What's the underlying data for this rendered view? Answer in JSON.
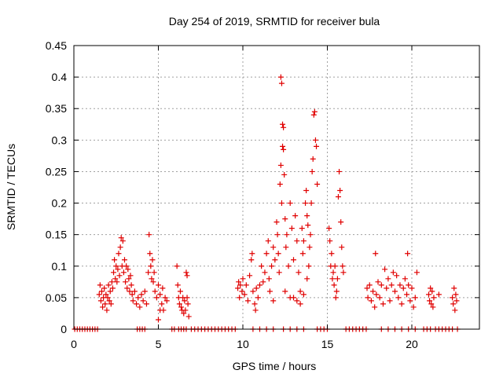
{
  "chart_data": {
    "type": "scatter",
    "title": "Day 254 of 2019, SRMTID for receiver bula",
    "xlabel": "GPS time / hours",
    "ylabel": "SRMTID / TECUs",
    "xlim": [
      0,
      24
    ],
    "ylim": [
      0,
      0.45
    ],
    "x_ticks": [
      0,
      5,
      10,
      15,
      20
    ],
    "x_tick_labels": [
      "0",
      "5",
      "10",
      "15",
      "20"
    ],
    "y_ticks": [
      0,
      0.05,
      0.1,
      0.15,
      0.2,
      0.25,
      0.3,
      0.35,
      0.4,
      0.45
    ],
    "y_tick_labels": [
      "0",
      "0.05",
      "0.1",
      "0.15",
      "0.2",
      "0.25",
      "0.3",
      "0.35",
      "0.4",
      "0.45"
    ],
    "grid": true,
    "marker": "+",
    "colors": {
      "series": "#e00000",
      "grid": "#a0a0a0",
      "axis": "#000000"
    },
    "series": [
      {
        "name": "SRMTID",
        "points": [
          [
            0.05,
            0
          ],
          [
            0.2,
            0
          ],
          [
            0.35,
            0
          ],
          [
            0.5,
            0
          ],
          [
            0.65,
            0
          ],
          [
            0.8,
            0
          ],
          [
            0.95,
            0
          ],
          [
            1.1,
            0
          ],
          [
            1.25,
            0
          ],
          [
            1.4,
            0
          ],
          [
            1.5,
            0.055
          ],
          [
            1.55,
            0.07
          ],
          [
            1.6,
            0.045
          ],
          [
            1.65,
            0.06
          ],
          [
            1.7,
            0.035
          ],
          [
            1.75,
            0.05
          ],
          [
            1.8,
            0.065
          ],
          [
            1.85,
            0.04
          ],
          [
            1.9,
            0.055
          ],
          [
            1.95,
            0.03
          ],
          [
            2.0,
            0.05
          ],
          [
            2.05,
            0.07
          ],
          [
            2.1,
            0.045
          ],
          [
            2.15,
            0.06
          ],
          [
            2.2,
            0.04
          ],
          [
            2.25,
            0.075
          ],
          [
            2.3,
            0.065
          ],
          [
            2.35,
            0.09
          ],
          [
            2.4,
            0.11
          ],
          [
            2.45,
            0.08
          ],
          [
            2.5,
            0.1
          ],
          [
            2.55,
            0.075
          ],
          [
            2.6,
            0.095
          ],
          [
            2.65,
            0.12
          ],
          [
            2.7,
            0.085
          ],
          [
            2.75,
            0.13
          ],
          [
            2.8,
            0.145
          ],
          [
            2.85,
            0.1
          ],
          [
            2.9,
            0.14
          ],
          [
            2.95,
            0.09
          ],
          [
            3.0,
            0.11
          ],
          [
            3.05,
            0.075
          ],
          [
            3.1,
            0.1
          ],
          [
            3.15,
            0.065
          ],
          [
            3.2,
            0.095
          ],
          [
            3.25,
            0.08
          ],
          [
            3.3,
            0.06
          ],
          [
            3.35,
            0.085
          ],
          [
            3.4,
            0.07
          ],
          [
            3.45,
            0.055
          ],
          [
            3.5,
            0.045
          ],
          [
            3.6,
            0.06
          ],
          [
            3.7,
            0.04
          ],
          [
            3.8,
            0.05
          ],
          [
            3.9,
            0.035
          ],
          [
            4.0,
            0.055
          ],
          [
            4.1,
            0.045
          ],
          [
            4.2,
            0.06
          ],
          [
            4.3,
            0.04
          ],
          [
            4.4,
            0.09
          ],
          [
            4.45,
            0.15
          ],
          [
            4.5,
            0.12
          ],
          [
            4.55,
            0.1
          ],
          [
            4.6,
            0.08
          ],
          [
            4.65,
            0.11
          ],
          [
            4.7,
            0.075
          ],
          [
            4.75,
            0.09
          ],
          [
            4.8,
            0.06
          ],
          [
            4.9,
            0.05
          ],
          [
            5.0,
            0.07
          ],
          [
            5.1,
            0.055
          ],
          [
            5.2,
            0.04
          ],
          [
            5.25,
            0.065
          ],
          [
            5.3,
            0.03
          ],
          [
            5.4,
            0.05
          ],
          [
            5.5,
            0.045
          ],
          [
            5.0,
            0.015
          ],
          [
            5.1,
            0.03
          ],
          [
            3.75,
            0
          ],
          [
            3.9,
            0
          ],
          [
            4.05,
            0
          ],
          [
            4.2,
            0
          ],
          [
            5.8,
            0
          ],
          [
            5.95,
            0
          ],
          [
            6.1,
            0.1
          ],
          [
            6.15,
            0.07
          ],
          [
            6.2,
            0.05
          ],
          [
            6.25,
            0.04
          ],
          [
            6.3,
            0.06
          ],
          [
            6.35,
            0.035
          ],
          [
            6.4,
            0.03
          ],
          [
            6.45,
            0.05
          ],
          [
            6.5,
            0.025
          ],
          [
            6.55,
            0.045
          ],
          [
            6.6,
            0.03
          ],
          [
            6.7,
            0.05
          ],
          [
            6.75,
            0.04
          ],
          [
            6.8,
            0.02
          ],
          [
            6.65,
            0.09
          ],
          [
            6.7,
            0.085
          ],
          [
            6.2,
            0
          ],
          [
            6.35,
            0
          ],
          [
            6.5,
            0
          ],
          [
            6.65,
            0
          ],
          [
            6.95,
            0
          ],
          [
            7.15,
            0
          ],
          [
            7.35,
            0
          ],
          [
            7.55,
            0
          ],
          [
            7.75,
            0
          ],
          [
            7.95,
            0
          ],
          [
            8.15,
            0
          ],
          [
            8.35,
            0
          ],
          [
            8.55,
            0
          ],
          [
            8.75,
            0
          ],
          [
            8.95,
            0
          ],
          [
            9.15,
            0
          ],
          [
            9.35,
            0
          ],
          [
            9.55,
            0
          ],
          [
            9.7,
            0.065
          ],
          [
            9.75,
            0.075
          ],
          [
            9.8,
            0.05
          ],
          [
            9.85,
            0.07
          ],
          [
            9.95,
            0.06
          ],
          [
            10.0,
            0.08
          ],
          [
            10.1,
            0.055
          ],
          [
            10.2,
            0.07
          ],
          [
            10.3,
            0.045
          ],
          [
            10.4,
            0.085
          ],
          [
            10.5,
            0.11
          ],
          [
            10.55,
            0.12
          ],
          [
            10.6,
            0.06
          ],
          [
            10.7,
            0.04
          ],
          [
            10.75,
            0.03
          ],
          [
            10.8,
            0.065
          ],
          [
            10.9,
            0.05
          ],
          [
            11.0,
            0.07
          ],
          [
            11.1,
            0.1
          ],
          [
            11.2,
            0.075
          ],
          [
            11.3,
            0.09
          ],
          [
            11.4,
            0.12
          ],
          [
            11.5,
            0.14
          ],
          [
            11.55,
            0.08
          ],
          [
            11.6,
            0.06
          ],
          [
            11.7,
            0.1
          ],
          [
            11.8,
            0.13
          ],
          [
            11.9,
            0.11
          ],
          [
            12.0,
            0.17
          ],
          [
            12.05,
            0.15
          ],
          [
            12.1,
            0.12
          ],
          [
            12.15,
            0.09
          ],
          [
            12.2,
            0.23
          ],
          [
            12.25,
            0.26
          ],
          [
            12.3,
            0.2
          ],
          [
            12.35,
            0.29
          ],
          [
            12.4,
            0.285
          ],
          [
            12.25,
            0.4
          ],
          [
            12.3,
            0.39
          ],
          [
            12.35,
            0.325
          ],
          [
            12.4,
            0.32
          ],
          [
            12.45,
            0.245
          ],
          [
            12.5,
            0.175
          ],
          [
            12.55,
            0.13
          ],
          [
            12.6,
            0.15
          ],
          [
            12.7,
            0.1
          ],
          [
            12.8,
            0.2
          ],
          [
            12.9,
            0.16
          ],
          [
            13.0,
            0.11
          ],
          [
            13.1,
            0.18
          ],
          [
            13.2,
            0.14
          ],
          [
            13.3,
            0.09
          ],
          [
            13.4,
            0.06
          ],
          [
            13.5,
            0.16
          ],
          [
            13.55,
            0.12
          ],
          [
            13.6,
            0.14
          ],
          [
            13.7,
            0.2
          ],
          [
            13.75,
            0.22
          ],
          [
            13.8,
            0.18
          ],
          [
            13.85,
            0.165
          ],
          [
            13.9,
            0.1
          ],
          [
            13.95,
            0.13
          ],
          [
            14.0,
            0.15
          ],
          [
            14.05,
            0.2
          ],
          [
            14.1,
            0.25
          ],
          [
            14.15,
            0.27
          ],
          [
            14.2,
            0.34
          ],
          [
            14.25,
            0.345
          ],
          [
            14.3,
            0.3
          ],
          [
            14.35,
            0.29
          ],
          [
            14.4,
            0.23
          ],
          [
            13.0,
            0.05
          ],
          [
            13.2,
            0.045
          ],
          [
            13.4,
            0.04
          ],
          [
            13.6,
            0.055
          ],
          [
            13.8,
            0.08
          ],
          [
            12.5,
            0.06
          ],
          [
            12.8,
            0.05
          ],
          [
            11.8,
            0.045
          ],
          [
            10.6,
            0
          ],
          [
            11.0,
            0
          ],
          [
            11.4,
            0
          ],
          [
            11.8,
            0
          ],
          [
            12.4,
            0
          ],
          [
            12.8,
            0
          ],
          [
            13.2,
            0
          ],
          [
            13.6,
            0
          ],
          [
            14.4,
            0
          ],
          [
            14.6,
            0
          ],
          [
            14.8,
            0
          ],
          [
            15.0,
            0
          ],
          [
            15.1,
            0.16
          ],
          [
            15.15,
            0.14
          ],
          [
            15.2,
            0.1
          ],
          [
            15.25,
            0.12
          ],
          [
            15.3,
            0.08
          ],
          [
            15.35,
            0.09
          ],
          [
            15.4,
            0.07
          ],
          [
            15.45,
            0.1
          ],
          [
            15.5,
            0.05
          ],
          [
            15.55,
            0.06
          ],
          [
            15.6,
            0.08
          ],
          [
            15.65,
            0.21
          ],
          [
            15.7,
            0.25
          ],
          [
            15.75,
            0.22
          ],
          [
            15.8,
            0.17
          ],
          [
            15.85,
            0.13
          ],
          [
            15.9,
            0.1
          ],
          [
            15.95,
            0.09
          ],
          [
            16.1,
            0
          ],
          [
            16.3,
            0
          ],
          [
            16.5,
            0
          ],
          [
            16.7,
            0
          ],
          [
            16.9,
            0
          ],
          [
            17.1,
            0
          ],
          [
            17.3,
            0
          ],
          [
            17.35,
            0.065
          ],
          [
            17.4,
            0.05
          ],
          [
            17.5,
            0.07
          ],
          [
            17.6,
            0.045
          ],
          [
            17.7,
            0.06
          ],
          [
            17.8,
            0.035
          ],
          [
            17.85,
            0.12
          ],
          [
            17.9,
            0.055
          ],
          [
            18.0,
            0.075
          ],
          [
            18.1,
            0.05
          ],
          [
            18.2,
            0.07
          ],
          [
            18.3,
            0.04
          ],
          [
            18.4,
            0.095
          ],
          [
            18.5,
            0.065
          ],
          [
            18.6,
            0.08
          ],
          [
            18.7,
            0.045
          ],
          [
            18.8,
            0.07
          ],
          [
            18.9,
            0.09
          ],
          [
            19.0,
            0.06
          ],
          [
            19.1,
            0.085
          ],
          [
            19.2,
            0.05
          ],
          [
            19.3,
            0.07
          ],
          [
            19.4,
            0.04
          ],
          [
            19.5,
            0.065
          ],
          [
            19.6,
            0.08
          ],
          [
            19.7,
            0.055
          ],
          [
            19.75,
            0.12
          ],
          [
            19.8,
            0.07
          ],
          [
            19.9,
            0.045
          ],
          [
            20.0,
            0.065
          ],
          [
            20.1,
            0.035
          ],
          [
            20.2,
            0.05
          ],
          [
            20.3,
            0.09
          ],
          [
            18.2,
            0
          ],
          [
            18.6,
            0
          ],
          [
            19.0,
            0
          ],
          [
            19.4,
            0
          ],
          [
            19.8,
            0
          ],
          [
            20.2,
            0
          ],
          [
            20.7,
            0
          ],
          [
            20.9,
            0
          ],
          [
            21.1,
            0
          ],
          [
            21.0,
            0.055
          ],
          [
            21.05,
            0.045
          ],
          [
            21.1,
            0.065
          ],
          [
            21.15,
            0.04
          ],
          [
            21.2,
            0.06
          ],
          [
            21.25,
            0.035
          ],
          [
            21.3,
            0.05
          ],
          [
            21.4,
            0
          ],
          [
            21.6,
            0
          ],
          [
            21.8,
            0
          ],
          [
            22.0,
            0
          ],
          [
            22.2,
            0
          ],
          [
            22.4,
            0
          ],
          [
            21.6,
            0.055
          ],
          [
            22.4,
            0.05
          ],
          [
            22.45,
            0.04
          ],
          [
            22.5,
            0.065
          ],
          [
            22.55,
            0.03
          ],
          [
            22.6,
            0.055
          ],
          [
            22.65,
            0.045
          ],
          [
            22.7,
            0
          ]
        ]
      }
    ]
  }
}
